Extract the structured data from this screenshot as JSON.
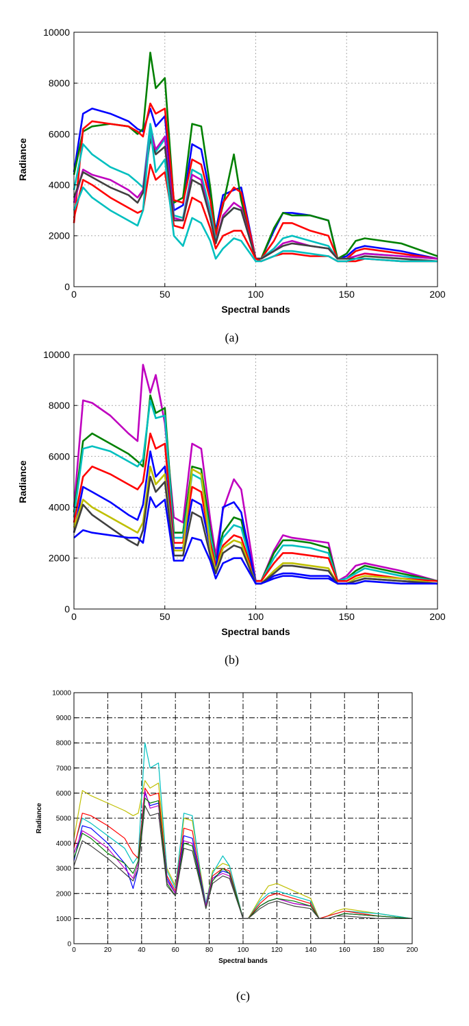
{
  "figure": {
    "captions": [
      "(a)",
      "(b)",
      "(c)"
    ]
  },
  "colors": {
    "blue": "#0000ff",
    "green": "#008000",
    "red": "#ff0000",
    "cyan": "#00bfbf",
    "magenta": "#bf00bf",
    "olive": "#bfbf00",
    "dark": "#404040"
  },
  "chart_data": [
    {
      "type": "line",
      "xlabel": "Spectral bands",
      "ylabel": "Radiance",
      "xlim": [
        0,
        200
      ],
      "ylim": [
        0,
        10000
      ],
      "xticks": [
        "0",
        "50",
        "100",
        "150",
        "200"
      ],
      "yticks": [
        "0",
        "2000",
        "4000",
        "6000",
        "8000",
        "10000"
      ],
      "grid": "dotted",
      "x": [
        0,
        5,
        10,
        20,
        30,
        35,
        38,
        42,
        45,
        50,
        55,
        60,
        65,
        70,
        75,
        78,
        82,
        88,
        92,
        100,
        103,
        110,
        115,
        120,
        130,
        140,
        145,
        150,
        155,
        160,
        180,
        200
      ],
      "series": [
        {
          "color": "#0000ff",
          "values": [
            4500,
            6800,
            7000,
            6800,
            6500,
            6200,
            6100,
            7000,
            6300,
            6700,
            3000,
            3200,
            5600,
            5400,
            3600,
            2200,
            3600,
            3800,
            3900,
            1100,
            1100,
            2200,
            2900,
            2900,
            2800,
            2600,
            1100,
            1200,
            1500,
            1600,
            1400,
            1100
          ]
        },
        {
          "color": "#008000",
          "values": [
            4400,
            6100,
            6300,
            6400,
            6300,
            6000,
            6200,
            9200,
            7800,
            8200,
            3300,
            3500,
            6400,
            6300,
            3900,
            2100,
            3200,
            5200,
            3400,
            1100,
            1100,
            2300,
            2900,
            2800,
            2800,
            2600,
            1100,
            1300,
            1800,
            1900,
            1700,
            1200
          ]
        },
        {
          "color": "#ff0000",
          "values": [
            2500,
            6200,
            6500,
            6400,
            6300,
            6100,
            5900,
            7200,
            6800,
            7000,
            3400,
            3300,
            5000,
            4800,
            3400,
            2000,
            3300,
            3900,
            3700,
            1100,
            1100,
            1800,
            2500,
            2500,
            2200,
            2000,
            1100,
            1100,
            1400,
            1500,
            1300,
            1100
          ]
        },
        {
          "color": "#00bfbf",
          "values": [
            3800,
            5600,
            5200,
            4700,
            4400,
            4100,
            3900,
            6400,
            5300,
            5800,
            2800,
            2700,
            4600,
            4400,
            3000,
            1800,
            2700,
            3100,
            3000,
            1100,
            1100,
            1500,
            1900,
            2000,
            1800,
            1600,
            1100,
            1100,
            1200,
            1300,
            1200,
            1100
          ]
        },
        {
          "color": "#bf00bf",
          "values": [
            3300,
            4600,
            4400,
            4200,
            3800,
            3500,
            3800,
            6100,
            5400,
            5900,
            2700,
            2600,
            4400,
            4200,
            2700,
            1700,
            2800,
            3300,
            3100,
            1100,
            1100,
            1400,
            1700,
            1800,
            1600,
            1500,
            1100,
            1100,
            1200,
            1300,
            1200,
            1100
          ]
        },
        {
          "color": "#404040",
          "values": [
            3500,
            4500,
            4300,
            3900,
            3600,
            3300,
            3700,
            5800,
            5200,
            5500,
            2600,
            2600,
            4200,
            4000,
            2700,
            1700,
            2700,
            3100,
            3000,
            1100,
            1100,
            1400,
            1600,
            1700,
            1600,
            1500,
            1100,
            1100,
            1100,
            1200,
            1100,
            1000
          ]
        },
        {
          "color": "#ff0000",
          "values": [
            2700,
            4200,
            4000,
            3500,
            3100,
            2900,
            3000,
            4800,
            4200,
            4500,
            2400,
            2300,
            3500,
            3300,
            2300,
            1500,
            2000,
            2200,
            2200,
            1100,
            1000,
            1200,
            1300,
            1300,
            1200,
            1200,
            1000,
            1000,
            1000,
            1100,
            1000,
            1000
          ]
        },
        {
          "color": "#00bfbf",
          "values": [
            3000,
            3900,
            3500,
            3000,
            2600,
            2400,
            3000,
            6200,
            4500,
            5000,
            2000,
            1600,
            2700,
            2500,
            1800,
            1100,
            1500,
            1900,
            1800,
            1000,
            1000,
            1200,
            1400,
            1400,
            1300,
            1200,
            1000,
            1000,
            1100,
            1100,
            1000,
            1000
          ]
        }
      ]
    },
    {
      "type": "line",
      "xlabel": "Spectral bands",
      "ylabel": "Radiance",
      "xlim": [
        0,
        200
      ],
      "ylim": [
        0,
        10000
      ],
      "xticks": [
        "0",
        "50",
        "100",
        "150",
        "200"
      ],
      "yticks": [
        "0",
        "2000",
        "4000",
        "6000",
        "8000",
        "10000"
      ],
      "grid": "dotted",
      "x": [
        0,
        5,
        10,
        20,
        30,
        35,
        38,
        42,
        45,
        50,
        55,
        60,
        65,
        70,
        75,
        78,
        82,
        88,
        92,
        100,
        103,
        110,
        115,
        120,
        130,
        140,
        145,
        150,
        155,
        160,
        180,
        200
      ],
      "series": [
        {
          "color": "#bf00bf",
          "values": [
            4000,
            8200,
            8100,
            7600,
            6900,
            6600,
            9600,
            8500,
            9200,
            7300,
            3600,
            3400,
            6500,
            6300,
            3500,
            2100,
            3900,
            5100,
            4700,
            1100,
            1100,
            2300,
            2900,
            2800,
            2700,
            2600,
            1100,
            1300,
            1700,
            1800,
            1500,
            1100
          ]
        },
        {
          "color": "#008000",
          "values": [
            3800,
            6600,
            6900,
            6500,
            6100,
            5800,
            5600,
            8400,
            7700,
            7900,
            3000,
            3000,
            5600,
            5500,
            3100,
            1900,
            3000,
            3600,
            3500,
            1100,
            1100,
            2200,
            2700,
            2700,
            2600,
            2400,
            1100,
            1200,
            1500,
            1700,
            1400,
            1100
          ]
        },
        {
          "color": "#00bfbf",
          "values": [
            3600,
            6300,
            6400,
            6200,
            5800,
            5600,
            5900,
            8200,
            7500,
            7600,
            2800,
            2800,
            5300,
            5100,
            2900,
            1800,
            2800,
            3300,
            3200,
            1100,
            1100,
            2000,
            2500,
            2500,
            2400,
            2200,
            1100,
            1200,
            1400,
            1600,
            1300,
            1100
          ]
        },
        {
          "color": "#ff0000",
          "values": [
            3400,
            5200,
            5600,
            5300,
            4900,
            4700,
            5000,
            6900,
            6300,
            6500,
            2600,
            2600,
            4800,
            4600,
            2600,
            1700,
            2500,
            2900,
            2800,
            1100,
            1100,
            1800,
            2200,
            2200,
            2100,
            2000,
            1100,
            1100,
            1300,
            1400,
            1200,
            1100
          ]
        },
        {
          "color": "#0000ff",
          "values": [
            3000,
            4800,
            4600,
            4200,
            3700,
            3500,
            4100,
            6200,
            5200,
            5600,
            2400,
            2400,
            4300,
            4100,
            2400,
            1500,
            4000,
            4200,
            3800,
            1000,
            1000,
            1300,
            1400,
            1400,
            1300,
            1300,
            1000,
            1000,
            1100,
            1200,
            1100,
            1000
          ]
        },
        {
          "color": "#bfbf00",
          "values": [
            3200,
            4300,
            4000,
            3600,
            3200,
            3000,
            3400,
            5600,
            4900,
            5300,
            2300,
            2300,
            5500,
            5300,
            2400,
            1500,
            2400,
            2700,
            2600,
            1000,
            1000,
            1500,
            1800,
            1800,
            1700,
            1600,
            1000,
            1000,
            1200,
            1300,
            1200,
            1000
          ]
        },
        {
          "color": "#404040",
          "values": [
            3000,
            4100,
            3700,
            3200,
            2700,
            2500,
            3100,
            5200,
            4600,
            5000,
            2100,
            2100,
            3800,
            3600,
            2100,
            1400,
            2200,
            2500,
            2400,
            1000,
            1000,
            1400,
            1700,
            1700,
            1600,
            1500,
            1000,
            1000,
            1100,
            1200,
            1100,
            1000
          ]
        },
        {
          "color": "#0000ff",
          "values": [
            2800,
            3100,
            3000,
            2900,
            2800,
            2800,
            2600,
            4400,
            4000,
            4300,
            1900,
            1900,
            2800,
            2700,
            1900,
            1200,
            1800,
            2000,
            2000,
            1000,
            1000,
            1200,
            1300,
            1300,
            1200,
            1200,
            1000,
            1000,
            1000,
            1100,
            1000,
            1000
          ]
        }
      ]
    },
    {
      "type": "line",
      "xlabel": "Spectral bands",
      "ylabel": "Radiance",
      "xlim": [
        0,
        200
      ],
      "ylim": [
        0,
        10000
      ],
      "xticks": [
        "0",
        "20",
        "40",
        "60",
        "80",
        "100",
        "120",
        "140",
        "160",
        "180",
        "200"
      ],
      "yticks": [
        "0",
        "1000",
        "2000",
        "3000",
        "4000",
        "5000",
        "6000",
        "7000",
        "8000",
        "9000",
        "10000"
      ],
      "grid": "dash-dot",
      "x": [
        0,
        5,
        10,
        20,
        30,
        35,
        38,
        42,
        45,
        50,
        55,
        60,
        65,
        70,
        75,
        78,
        82,
        88,
        92,
        100,
        103,
        110,
        115,
        120,
        130,
        140,
        145,
        150,
        155,
        160,
        180,
        200
      ],
      "series": [
        {
          "color": "#bfbf00",
          "values": [
            4200,
            6100,
            5900,
            5600,
            5300,
            5100,
            5200,
            6500,
            6200,
            6400,
            3000,
            2300,
            5000,
            4900,
            2800,
            1600,
            2900,
            3200,
            3100,
            1000,
            1000,
            1800,
            2300,
            2400,
            2100,
            1800,
            1000,
            1100,
            1300,
            1400,
            1200,
            1000
          ]
        },
        {
          "color": "#00bfbf",
          "values": [
            3900,
            5000,
            4800,
            4300,
            3800,
            3200,
            3500,
            8000,
            7000,
            7200,
            2900,
            2200,
            5200,
            5100,
            2700,
            1600,
            2800,
            3500,
            3100,
            1000,
            1000,
            1700,
            2000,
            2100,
            1900,
            1700,
            1000,
            1100,
            1200,
            1300,
            1200,
            1000
          ]
        },
        {
          "color": "#ff0000",
          "values": [
            3800,
            5200,
            5100,
            4700,
            4200,
            3600,
            3400,
            6200,
            5900,
            6000,
            2700,
            2100,
            4600,
            4500,
            2600,
            1500,
            2700,
            3000,
            2900,
            1000,
            1000,
            1600,
            1900,
            2000,
            1800,
            1600,
            1000,
            1100,
            1200,
            1300,
            1100,
            1000
          ]
        },
        {
          "color": "#0000ff",
          "values": [
            3300,
            4700,
            4600,
            4000,
            3200,
            2200,
            3000,
            6000,
            5500,
            5600,
            2600,
            2000,
            4300,
            4200,
            2500,
            1500,
            2600,
            2900,
            2800,
            1000,
            1000,
            1500,
            1700,
            1800,
            1600,
            1500,
            1000,
            1000,
            1100,
            1200,
            1100,
            1000
          ]
        },
        {
          "color": "#bf00bf",
          "values": [
            3600,
            4500,
            4300,
            3800,
            3000,
            2600,
            3200,
            6100,
            5400,
            5500,
            2500,
            2000,
            4100,
            4000,
            2400,
            1500,
            2600,
            2800,
            2700,
            1000,
            1000,
            1500,
            1700,
            1800,
            1600,
            1500,
            1000,
            1000,
            1100,
            1200,
            1100,
            1000
          ]
        },
        {
          "color": "#008000",
          "values": [
            3400,
            4400,
            4200,
            3600,
            3200,
            2800,
            3300,
            5800,
            5600,
            5700,
            2400,
            1900,
            4000,
            3900,
            2400,
            1400,
            2500,
            3000,
            2800,
            1000,
            1000,
            1500,
            1700,
            1800,
            1700,
            1500,
            1000,
            1000,
            1100,
            1200,
            1100,
            1000
          ]
        },
        {
          "color": "#404040",
          "values": [
            3100,
            4100,
            3900,
            3400,
            2800,
            2500,
            3000,
            5500,
            5100,
            5200,
            2300,
            1900,
            3800,
            3700,
            2300,
            1400,
            2400,
            2700,
            2600,
            1000,
            1000,
            1400,
            1600,
            1700,
            1500,
            1400,
            1000,
            1000,
            1100,
            1100,
            1000,
            1000
          ]
        }
      ]
    }
  ]
}
